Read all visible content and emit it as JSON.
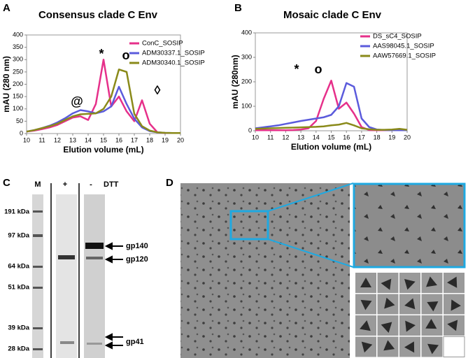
{
  "panel_labels": [
    "A",
    "B",
    "C",
    "D"
  ],
  "chart_data": [
    {
      "type": "line",
      "title": "Consensus clade C Env",
      "x_label": "Elution volume (mL)",
      "y_label": "mAU (280 nm)",
      "x": [
        10,
        10.5,
        11,
        11.5,
        12,
        12.5,
        13,
        13.5,
        14,
        14.5,
        15,
        15.5,
        16,
        16.5,
        17,
        17.5,
        18,
        18.5,
        19,
        19.5,
        20
      ],
      "series": [
        {
          "name": "ConC_SOSIP",
          "color": "#e6308a",
          "values": [
            8,
            12,
            18,
            25,
            35,
            50,
            65,
            70,
            55,
            120,
            300,
            110,
            150,
            90,
            50,
            135,
            40,
            5,
            2,
            2,
            2
          ]
        },
        {
          "name": "ADM30337.1_SOSIP",
          "color": "#5b5bdc",
          "values": [
            8,
            14,
            22,
            32,
            45,
            62,
            82,
            95,
            90,
            82,
            90,
            110,
            190,
            120,
            60,
            25,
            10,
            5,
            3,
            2,
            2
          ]
        },
        {
          "name": "ADM30340.1_SOSIP",
          "color": "#8a8a1a",
          "values": [
            8,
            14,
            22,
            30,
            40,
            55,
            70,
            78,
            80,
            82,
            100,
            150,
            260,
            250,
            80,
            30,
            12,
            5,
            3,
            2,
            2
          ]
        }
      ],
      "annotations": [
        "@",
        "*",
        "o",
        "◊"
      ],
      "xlim": [
        10,
        20
      ],
      "xticks": [
        10,
        11,
        12,
        13,
        14,
        15,
        16,
        17,
        18,
        19,
        20
      ],
      "ylim": [
        0,
        400
      ],
      "yticks": [
        0,
        50,
        100,
        150,
        200,
        250,
        300,
        350,
        400
      ]
    },
    {
      "type": "line",
      "title": "Mosaic clade C Env",
      "x_label": "Elution volume (mL)",
      "y_label": "mAU (280nm)",
      "x": [
        10,
        10.5,
        11,
        11.5,
        12,
        12.5,
        13,
        13.5,
        14,
        14.5,
        15,
        15.5,
        16,
        16.5,
        17,
        17.5,
        18,
        18.5,
        19,
        19.5,
        20
      ],
      "series": [
        {
          "name": "DS_sC4_SOSIP",
          "color": "#e6308a",
          "values": [
            2,
            2,
            2,
            2,
            2,
            3,
            5,
            10,
            40,
            130,
            205,
            90,
            115,
            70,
            15,
            3,
            2,
            2,
            2,
            2,
            2
          ]
        },
        {
          "name": "AAS98045.1_SOSIP",
          "color": "#5b5bdc",
          "values": [
            10,
            14,
            18,
            22,
            28,
            34,
            40,
            45,
            50,
            55,
            65,
            100,
            195,
            180,
            50,
            15,
            5,
            3,
            2,
            2,
            2
          ]
        },
        {
          "name": "AAW57669.1_SOSIP",
          "color": "#8a8a1a",
          "values": [
            8,
            9,
            10,
            11,
            12,
            13,
            14,
            15,
            16,
            18,
            22,
            25,
            32,
            22,
            10,
            6,
            4,
            4,
            5,
            8,
            4
          ]
        }
      ],
      "annotations": [
        "*",
        "o"
      ],
      "xlim": [
        10,
        20
      ],
      "xticks": [
        10,
        11,
        12,
        13,
        14,
        15,
        16,
        17,
        18,
        19,
        20
      ],
      "ylim": [
        0,
        400
      ],
      "yticks": [
        0,
        100,
        200,
        300,
        400
      ]
    }
  ],
  "gel": {
    "lanes": [
      "M",
      "+",
      "-"
    ],
    "treatment": "DTT",
    "markers": [
      "191 kDa",
      "97 kDa",
      "64 kDa",
      "51 kDa",
      "39 kDa",
      "28 kDa"
    ],
    "bands": [
      "gp140",
      "gp120",
      "gp41"
    ]
  }
}
